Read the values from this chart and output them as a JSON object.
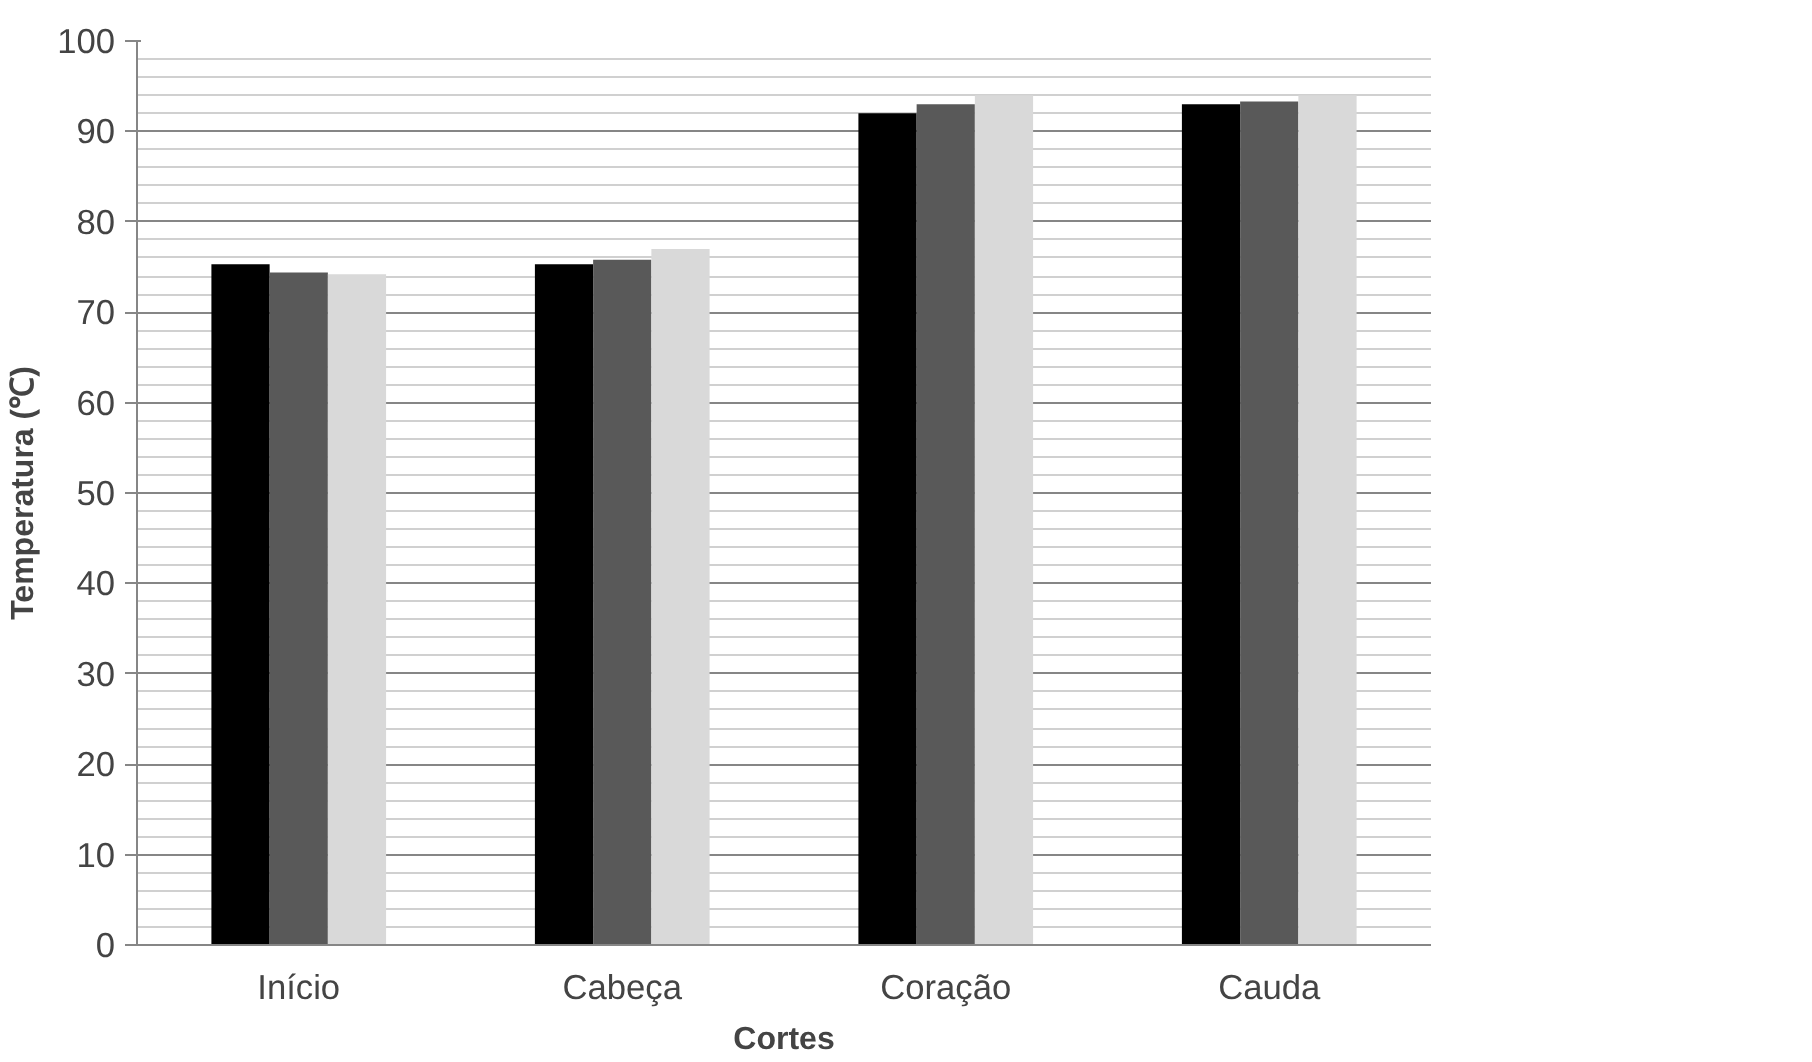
{
  "chart_data": {
    "type": "bar",
    "xlabel": "Cortes",
    "ylabel": "Temperatura (℃)",
    "categories": [
      "Início",
      "Cabeça",
      "Coração",
      "Cauda"
    ],
    "series": [
      {
        "color": "#000000",
        "values": [
          75.3,
          75.3,
          92,
          93
        ]
      },
      {
        "color": "#595959",
        "values": [
          74.4,
          75.8,
          93,
          93.3
        ]
      },
      {
        "color": "#d9d9d9",
        "values": [
          74.2,
          77,
          94,
          94
        ]
      }
    ],
    "ylim": [
      0,
      100
    ],
    "yticks": [
      0,
      10,
      20,
      30,
      40,
      50,
      60,
      70,
      80,
      90,
      100
    ],
    "grid": "y"
  }
}
